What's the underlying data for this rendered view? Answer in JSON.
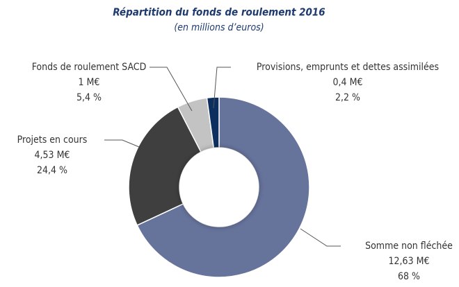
{
  "chart_data": {
    "type": "donut",
    "title": "Répartition du fonds de roulement 2016",
    "subtitle": "(en millions d’euros)",
    "categories": [
      "Somme non fléchée",
      "Projets en cours",
      "Fonds de roulement SACD",
      "Provisions, emprunts et dettes assimilées"
    ],
    "values": [
      12.63,
      4.53,
      1,
      0.4
    ],
    "value_labels": [
      "12,63 M€",
      "4,53 M€",
      "1 M€",
      "0,4 M€"
    ],
    "percentages": [
      68,
      24.4,
      5.4,
      2.2
    ],
    "percentage_labels": [
      "68 %",
      "24,4 %",
      "5,4 %",
      "2,2 %"
    ],
    "colors": [
      "#66739b",
      "#3f3f3f",
      "#c3c3c3",
      "#0c2f5f"
    ]
  }
}
